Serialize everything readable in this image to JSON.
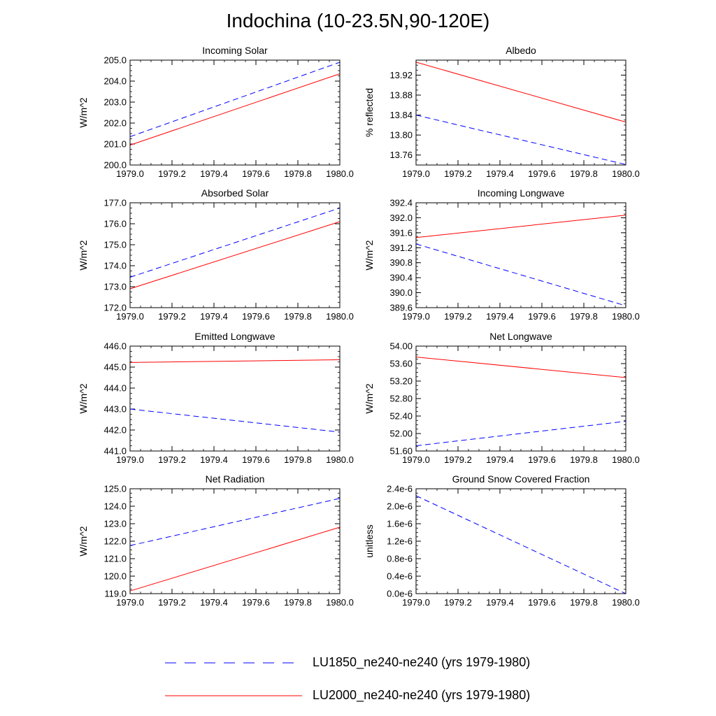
{
  "title": "Indochina (10-23.5N,90-120E)",
  "legend": [
    {
      "label": "LU1850_ne240-ne240 (yrs 1979-1980)",
      "color": "#0000ff",
      "dash": "dashed"
    },
    {
      "label": "LU2000_ne240-ne240 (yrs 1979-1980)",
      "color": "#ff0000",
      "dash": "solid"
    }
  ],
  "chart_data": [
    {
      "type": "line",
      "title": "Incoming Solar",
      "xlabel": "",
      "ylabel": "W/m^2",
      "xlim": [
        1979.0,
        1980.0
      ],
      "ylim": [
        200.0,
        205.0
      ],
      "xticks": [
        "1979.0",
        "1979.2",
        "1979.4",
        "1979.6",
        "1979.8",
        "1980.0"
      ],
      "yticks": [
        "200.0",
        "201.0",
        "202.0",
        "203.0",
        "204.0",
        "205.0"
      ],
      "series": [
        {
          "name": "LU1850_ne240-ne240 (yrs 1979-1980)",
          "x": [
            1979.0,
            1980.0
          ],
          "y": [
            201.35,
            204.9
          ]
        },
        {
          "name": "LU2000_ne240-ne240 (yrs 1979-1980)",
          "x": [
            1979.0,
            1980.0
          ],
          "y": [
            200.95,
            204.35
          ]
        }
      ]
    },
    {
      "type": "line",
      "title": "Albedo",
      "xlabel": "",
      "ylabel": "% reflected",
      "xlim": [
        1979.0,
        1980.0
      ],
      "ylim": [
        13.74,
        13.95
      ],
      "xticks": [
        "1979.0",
        "1979.2",
        "1979.4",
        "1979.6",
        "1979.8",
        "1980.0"
      ],
      "yticks": [
        "13.76",
        "13.80",
        "13.84",
        "13.88",
        "13.92"
      ],
      "series": [
        {
          "name": "LU1850_ne240-ne240 (yrs 1979-1980)",
          "x": [
            1979.0,
            1980.0
          ],
          "y": [
            13.84,
            13.741
          ]
        },
        {
          "name": "LU2000_ne240-ne240 (yrs 1979-1980)",
          "x": [
            1979.0,
            1980.0
          ],
          "y": [
            13.946,
            13.826
          ]
        }
      ]
    },
    {
      "type": "line",
      "title": "Absorbed Solar",
      "xlabel": "",
      "ylabel": "W/m^2",
      "xlim": [
        1979.0,
        1980.0
      ],
      "ylim": [
        172.0,
        177.0
      ],
      "xticks": [
        "1979.0",
        "1979.2",
        "1979.4",
        "1979.6",
        "1979.8",
        "1980.0"
      ],
      "yticks": [
        "172.0",
        "173.0",
        "174.0",
        "175.0",
        "176.0",
        "177.0"
      ],
      "series": [
        {
          "name": "LU1850_ne240-ne240 (yrs 1979-1980)",
          "x": [
            1979.0,
            1980.0
          ],
          "y": [
            173.45,
            176.75
          ]
        },
        {
          "name": "LU2000_ne240-ne240 (yrs 1979-1980)",
          "x": [
            1979.0,
            1980.0
          ],
          "y": [
            172.9,
            176.1
          ]
        }
      ]
    },
    {
      "type": "line",
      "title": "Incoming Longwave",
      "xlabel": "",
      "ylabel": "W/m^2",
      "xlim": [
        1979.0,
        1980.0
      ],
      "ylim": [
        389.6,
        392.4
      ],
      "xticks": [
        "1979.0",
        "1979.2",
        "1979.4",
        "1979.6",
        "1979.8",
        "1980.0"
      ],
      "yticks": [
        "389.6",
        "390.0",
        "390.4",
        "390.8",
        "391.2",
        "391.6",
        "392.0",
        "392.4"
      ],
      "series": [
        {
          "name": "LU1850_ne240-ne240 (yrs 1979-1980)",
          "x": [
            1979.0,
            1980.0
          ],
          "y": [
            391.3,
            389.65
          ]
        },
        {
          "name": "LU2000_ne240-ne240 (yrs 1979-1980)",
          "x": [
            1979.0,
            1980.0
          ],
          "y": [
            391.47,
            392.07
          ]
        }
      ]
    },
    {
      "type": "line",
      "title": "Emitted Longwave",
      "xlabel": "",
      "ylabel": "W/m^2",
      "xlim": [
        1979.0,
        1980.0
      ],
      "ylim": [
        441.0,
        446.0
      ],
      "xticks": [
        "1979.0",
        "1979.2",
        "1979.4",
        "1979.6",
        "1979.8",
        "1980.0"
      ],
      "yticks": [
        "441.0",
        "442.0",
        "443.0",
        "444.0",
        "445.0",
        "446.0"
      ],
      "series": [
        {
          "name": "LU1850_ne240-ne240 (yrs 1979-1980)",
          "x": [
            1979.0,
            1980.0
          ],
          "y": [
            443.0,
            441.9
          ]
        },
        {
          "name": "LU2000_ne240-ne240 (yrs 1979-1980)",
          "x": [
            1979.0,
            1980.0
          ],
          "y": [
            445.22,
            445.35
          ]
        }
      ]
    },
    {
      "type": "line",
      "title": "Net Longwave",
      "xlabel": "",
      "ylabel": "W/m^2",
      "xlim": [
        1979.0,
        1980.0
      ],
      "ylim": [
        51.6,
        54.0
      ],
      "xticks": [
        "1979.0",
        "1979.2",
        "1979.4",
        "1979.6",
        "1979.8",
        "1980.0"
      ],
      "yticks": [
        "51.60",
        "52.00",
        "52.40",
        "52.80",
        "53.20",
        "53.60",
        "54.00"
      ],
      "series": [
        {
          "name": "LU1850_ne240-ne240 (yrs 1979-1980)",
          "x": [
            1979.0,
            1980.0
          ],
          "y": [
            51.72,
            52.28
          ]
        },
        {
          "name": "LU2000_ne240-ne240 (yrs 1979-1980)",
          "x": [
            1979.0,
            1980.0
          ],
          "y": [
            53.75,
            53.28
          ]
        }
      ]
    },
    {
      "type": "line",
      "title": "Net Radiation",
      "xlabel": "",
      "ylabel": "W/m^2",
      "xlim": [
        1979.0,
        1980.0
      ],
      "ylim": [
        119.0,
        125.0
      ],
      "xticks": [
        "1979.0",
        "1979.2",
        "1979.4",
        "1979.6",
        "1979.8",
        "1980.0"
      ],
      "yticks": [
        "119.0",
        "120.0",
        "121.0",
        "122.0",
        "123.0",
        "124.0",
        "125.0"
      ],
      "series": [
        {
          "name": "LU1850_ne240-ne240 (yrs 1979-1980)",
          "x": [
            1979.0,
            1980.0
          ],
          "y": [
            121.75,
            124.45
          ]
        },
        {
          "name": "LU2000_ne240-ne240 (yrs 1979-1980)",
          "x": [
            1979.0,
            1980.0
          ],
          "y": [
            119.15,
            122.8
          ]
        }
      ]
    },
    {
      "type": "line",
      "title": "Ground Snow Covered Fraction",
      "xlabel": "",
      "ylabel": "unitless",
      "xlim": [
        1979.0,
        1980.0
      ],
      "ylim": [
        0.0,
        2.4e-06
      ],
      "xticks": [
        "1979.0",
        "1979.2",
        "1979.4",
        "1979.6",
        "1979.8",
        "1980.0"
      ],
      "yticks": [
        "0.0e-6",
        "0.4e-6",
        "0.8e-6",
        "1.2e-6",
        "1.6e-6",
        "2.0e-6",
        "2.4e-6"
      ],
      "series": [
        {
          "name": "LU1850_ne240-ne240 (yrs 1979-1980)",
          "x": [
            1979.0,
            1980.0
          ],
          "y": [
            2.24e-06,
            0.0
          ]
        },
        {
          "name": "LU2000_ne240-ne240 (yrs 1979-1980)",
          "x": [
            1979.0,
            1980.0
          ],
          "y": [
            0.0,
            0.0
          ]
        }
      ]
    }
  ]
}
